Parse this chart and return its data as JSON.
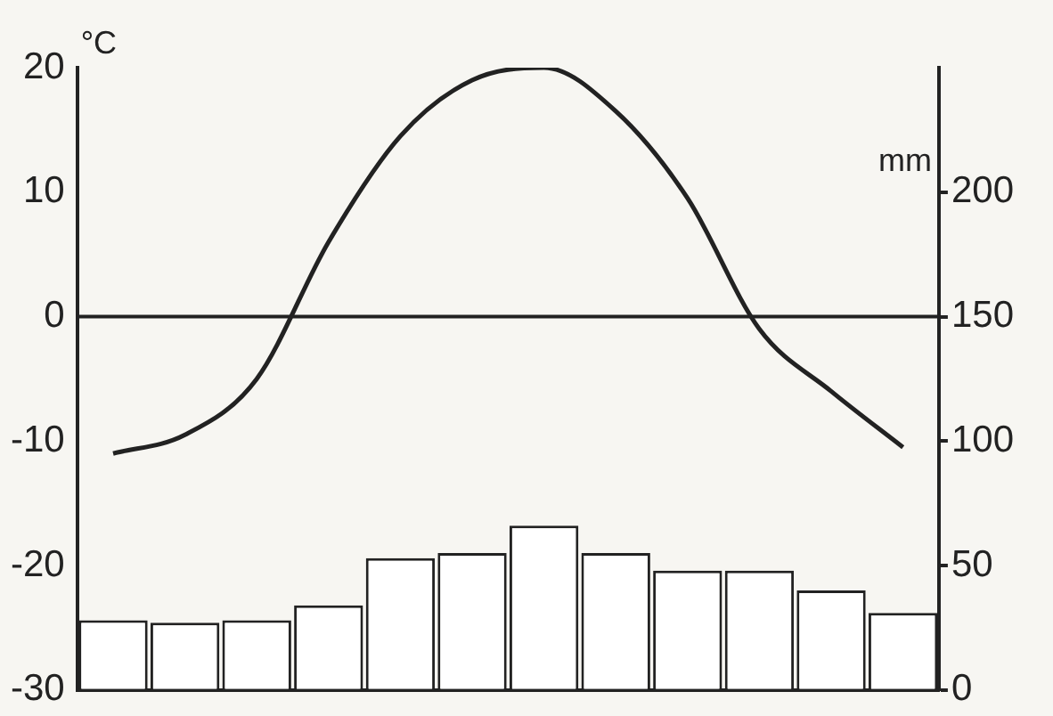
{
  "chart_data": {
    "type": "bar",
    "ylabel": "°C",
    "y2label": "mm",
    "categories": [
      null,
      null,
      null,
      null,
      null,
      null,
      null,
      null,
      null,
      null,
      null,
      null
    ],
    "series": [
      {
        "color": "#222222",
        "axis": "y",
        "type": "line",
        "values": [
          -11,
          -9.5,
          -5,
          6,
          14.5,
          19,
          20,
          16.5,
          9.5,
          -1,
          -6,
          -10.5
        ]
      },
      {
        "color": "#ffffff",
        "axis": "y2",
        "values": [
          28,
          27,
          28,
          34,
          53,
          55,
          66,
          55,
          48,
          48,
          40,
          31
        ]
      }
    ],
    "ylim": [
      -30,
      20
    ],
    "yticks": [
      -30,
      -20,
      -10,
      0,
      10,
      20
    ],
    "y2lim": [
      0,
      250
    ],
    "y2ticks": [
      0,
      50,
      100,
      150,
      200
    ],
    "ref_lines": [
      {
        "axis": "y",
        "value": 0,
        "color": "#222222"
      }
    ],
    "grid": false,
    "legend": false,
    "marker": "none",
    "line_style": "solid",
    "tick_labels": "y"
  }
}
